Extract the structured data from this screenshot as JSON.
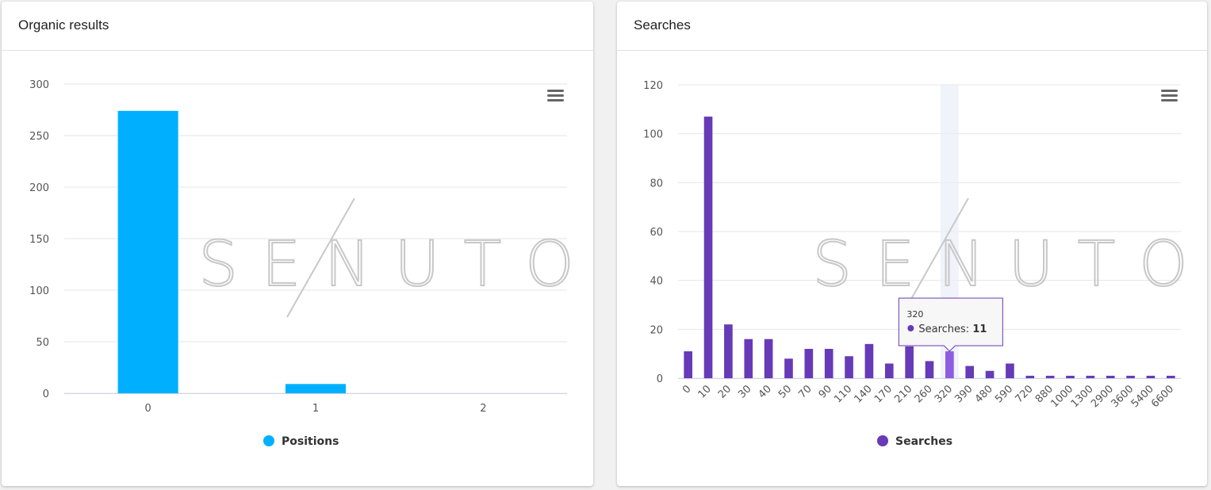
{
  "watermark": "SENUTO",
  "charts": {
    "organic": {
      "card_title": "Organic results",
      "legend": "Positions",
      "color": "#00b0ff"
    },
    "searches": {
      "card_title": "Searches",
      "legend": "Searches",
      "color": "#673ab7",
      "highlight_color": "#8e5ce0",
      "tooltip": {
        "x": "320",
        "label": "Searches: ",
        "value": "11"
      }
    }
  },
  "chart_data": [
    {
      "type": "bar",
      "title": "Organic results",
      "categories": [
        "0",
        "1",
        "2"
      ],
      "series": [
        {
          "name": "Positions",
          "values": [
            274,
            9,
            0
          ]
        }
      ],
      "ylim": [
        0,
        300
      ],
      "yticks": [
        "0",
        "50",
        "100",
        "150",
        "200",
        "250",
        "300"
      ],
      "grid": true,
      "legend": "bottom-center"
    },
    {
      "type": "bar",
      "title": "Searches",
      "categories": [
        "0",
        "10",
        "20",
        "30",
        "40",
        "50",
        "70",
        "90",
        "110",
        "140",
        "170",
        "210",
        "260",
        "320",
        "390",
        "480",
        "590",
        "720",
        "880",
        "1000",
        "1300",
        "2900",
        "3600",
        "5400",
        "6600"
      ],
      "series": [
        {
          "name": "Searches",
          "values": [
            11,
            107,
            22,
            16,
            16,
            8,
            12,
            12,
            9,
            14,
            6,
            13,
            7,
            11,
            5,
            3,
            6,
            1,
            1,
            1,
            1,
            1,
            1,
            1,
            1
          ]
        }
      ],
      "ylim": [
        0,
        120
      ],
      "yticks": [
        "0",
        "20",
        "40",
        "60",
        "80",
        "100",
        "120"
      ],
      "grid": true,
      "legend": "bottom-center",
      "highlighted_category": "320"
    }
  ]
}
